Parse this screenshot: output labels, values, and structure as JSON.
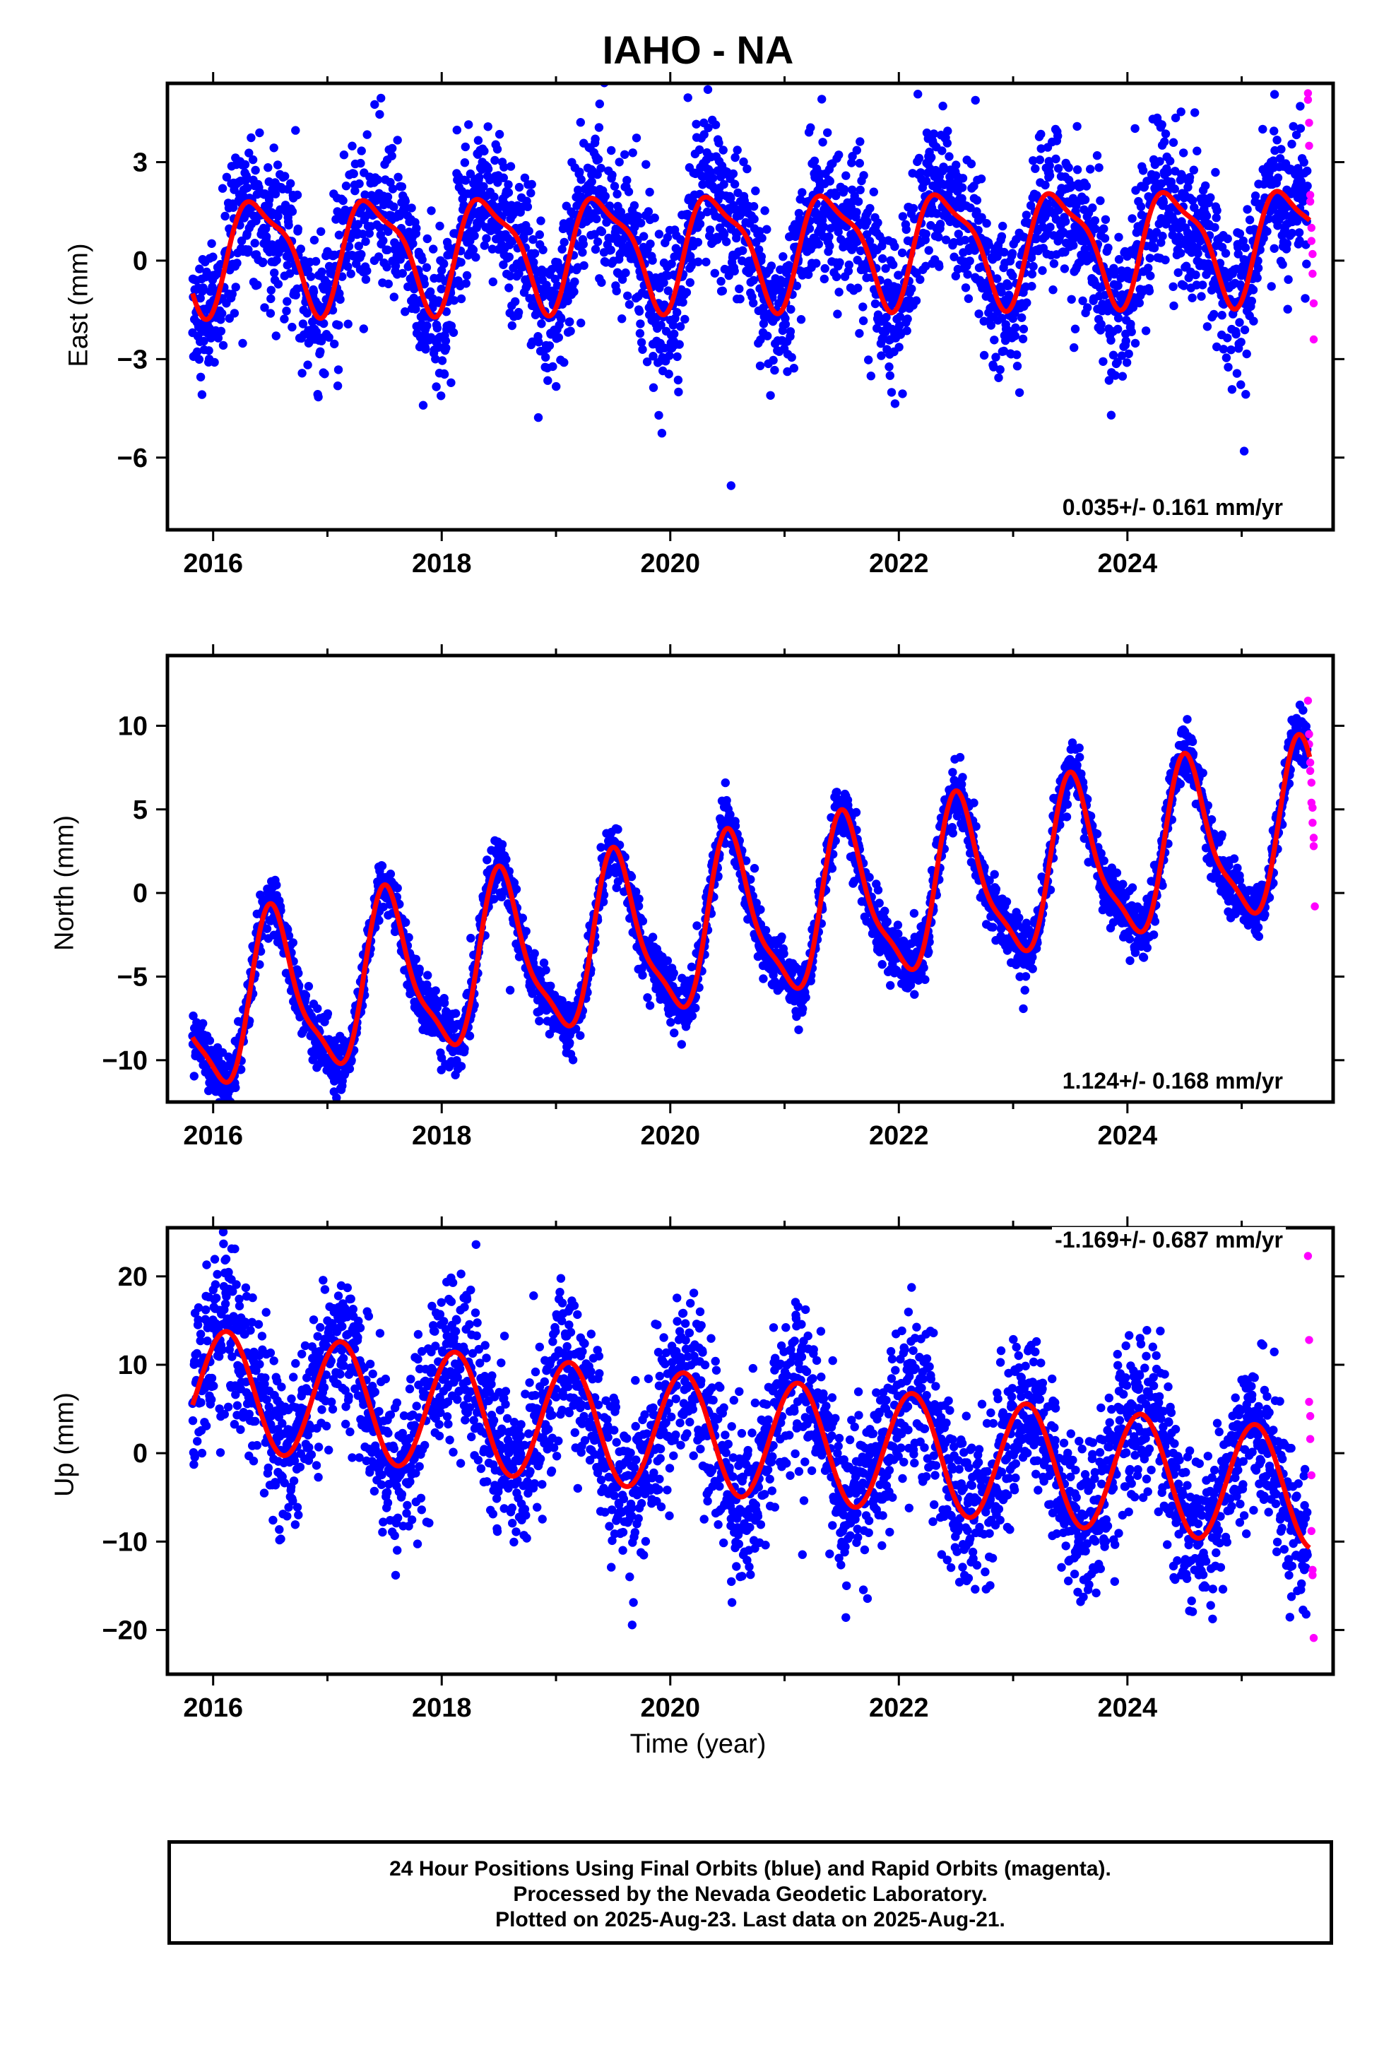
{
  "title": "IAHO - NA",
  "xlabel": "Time (year)",
  "footer": {
    "line1": "24 Hour Positions Using Final Orbits (blue) and Rapid Orbits (magenta).",
    "line2": "Processed by the Nevada Geodetic Laboratory.",
    "line3": "Plotted on 2025-Aug-23. Last data on 2025-Aug-21."
  },
  "colors": {
    "final": "#0000ff",
    "rapid": "#ff00ff",
    "model": "#ff0000"
  },
  "chart_data": [
    {
      "type": "scatter",
      "component": "east",
      "ylabel": "East (mm)",
      "rate_label": "0.035+/- 0.161 mm/yr",
      "rate_position": "bottom-right",
      "xlim": [
        2015.6,
        2025.8
      ],
      "ylim": [
        -8.2,
        5.4
      ],
      "x_ticks": [
        2016,
        2018,
        2020,
        2022,
        2024
      ],
      "y_ticks": [
        3,
        0,
        -3,
        -6
      ],
      "y_tick_labels": [
        "3",
        "0",
        "−3",
        "−6"
      ],
      "model": {
        "trend_mm_per_yr": 0.035,
        "offset_mm": 0.4,
        "annual_cos": -1.35,
        "annual_sin": 0.9,
        "semiannual_cos": -0.45,
        "semiannual_sin": 0.2,
        "noise_sigma": 1.15
      },
      "rapid_points": [
        [
          2025.58,
          5.1
        ],
        [
          2025.58,
          4.9
        ],
        [
          2025.59,
          4.2
        ],
        [
          2025.59,
          3.5
        ],
        [
          2025.6,
          2.0
        ],
        [
          2025.6,
          1.8
        ],
        [
          2025.61,
          1.0
        ],
        [
          2025.61,
          0.6
        ],
        [
          2025.62,
          0.2
        ],
        [
          2025.62,
          -0.4
        ],
        [
          2025.63,
          -1.3
        ],
        [
          2025.63,
          -2.4
        ]
      ]
    },
    {
      "type": "scatter",
      "component": "north",
      "ylabel": "North (mm)",
      "rate_label": "1.124+/- 0.168 mm/yr",
      "rate_position": "bottom-right",
      "xlim": [
        2015.6,
        2025.8
      ],
      "ylim": [
        -12.5,
        14.2
      ],
      "x_ticks": [
        2016,
        2018,
        2020,
        2022,
        2024
      ],
      "y_ticks": [
        10,
        5,
        0,
        -5,
        -10
      ],
      "y_tick_labels": [
        "10",
        "5",
        "0",
        "−5",
        "−10"
      ],
      "model": {
        "trend_mm_per_yr": 1.124,
        "offset_mm": -2.5,
        "annual_cos": -4.6,
        "annual_sin": -1.0,
        "semiannual_cos": 1.2,
        "semiannual_sin": -0.5,
        "noise_sigma": 0.85
      },
      "rapid_points": [
        [
          2025.58,
          11.5
        ],
        [
          2025.59,
          9.5
        ],
        [
          2025.59,
          8.9
        ],
        [
          2025.6,
          7.8
        ],
        [
          2025.6,
          7.3
        ],
        [
          2025.61,
          6.6
        ],
        [
          2025.61,
          5.4
        ],
        [
          2025.62,
          5.1
        ],
        [
          2025.62,
          4.2
        ],
        [
          2025.63,
          3.3
        ],
        [
          2025.63,
          2.8
        ],
        [
          2025.64,
          -0.8
        ]
      ]
    },
    {
      "type": "scatter",
      "component": "up",
      "ylabel": "Up (mm)",
      "rate_label": "-1.169+/- 0.687 mm/yr",
      "rate_position": "top-right",
      "xlim": [
        2015.6,
        2025.8
      ],
      "ylim": [
        -25,
        25.5
      ],
      "x_ticks": [
        2016,
        2018,
        2020,
        2022,
        2024
      ],
      "y_ticks": [
        20,
        10,
        0,
        -10,
        -20
      ],
      "y_tick_labels": [
        "20",
        "10",
        "0",
        "−10",
        "−20"
      ],
      "model": {
        "trend_mm_per_yr": -1.169,
        "offset_mm": 2.5,
        "annual_cos": 5.0,
        "annual_sin": 4.5,
        "semiannual_cos": 0.0,
        "semiannual_sin": 0.0,
        "noise_sigma": 4.6
      },
      "rapid_points": [
        [
          2025.58,
          22.3
        ],
        [
          2025.59,
          12.8
        ],
        [
          2025.59,
          5.8
        ],
        [
          2025.6,
          4.2
        ],
        [
          2025.6,
          1.6
        ],
        [
          2025.61,
          -2.5
        ],
        [
          2025.61,
          -8.8
        ],
        [
          2025.62,
          -13.2
        ],
        [
          2025.62,
          -13.8
        ],
        [
          2025.63,
          -20.9
        ]
      ]
    }
  ]
}
